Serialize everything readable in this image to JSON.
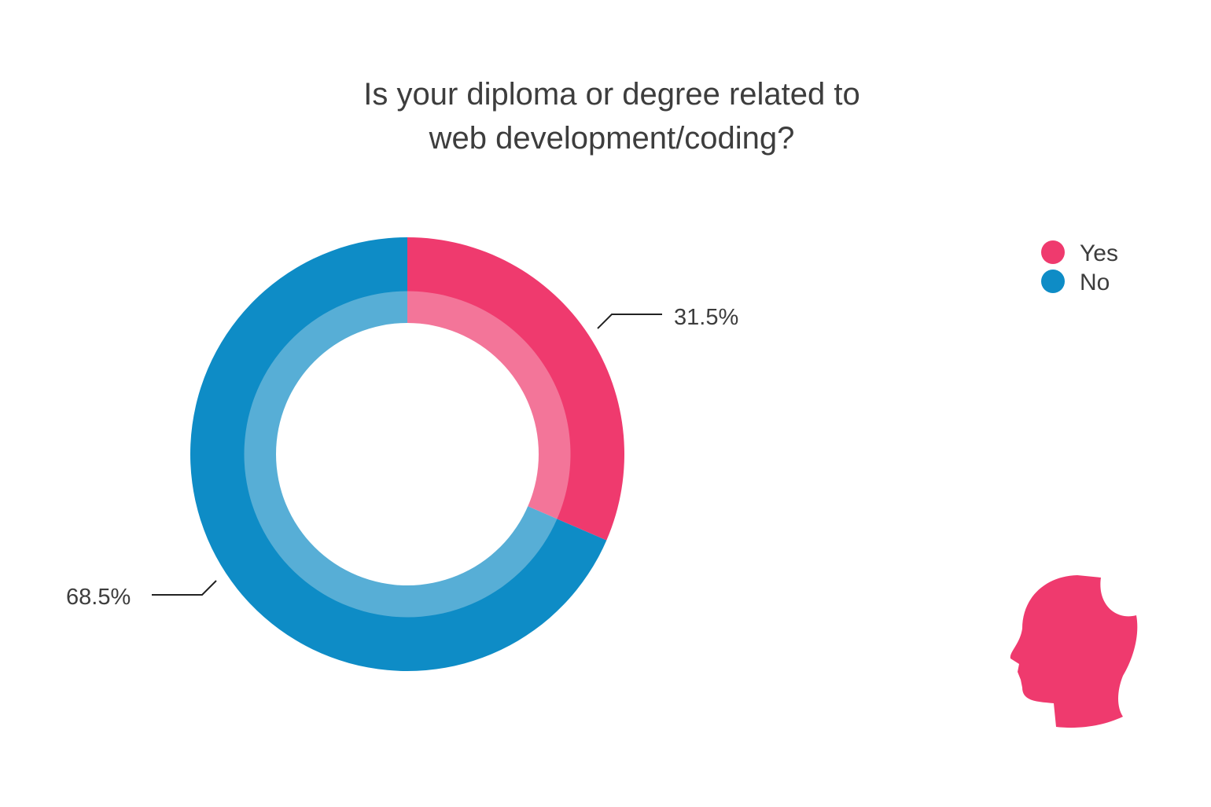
{
  "chart_data": {
    "type": "pie",
    "variant": "donut",
    "title_lines": [
      "Is your diploma or degree related to",
      "web development/coding?"
    ],
    "categories": [
      "Yes",
      "No"
    ],
    "values": [
      31.5,
      68.5
    ],
    "data_labels": [
      "31.5%",
      "68.5%"
    ],
    "colors": [
      "#ef3a6e",
      "#0e8cc6"
    ],
    "inner_ring_colors": [
      "#f37599",
      "#57aed6"
    ],
    "legend": {
      "entries": [
        "Yes",
        "No"
      ],
      "placement": "top-right"
    }
  },
  "logo": {
    "icon": "head-silhouette-icon",
    "color": "#ef3a6e"
  }
}
